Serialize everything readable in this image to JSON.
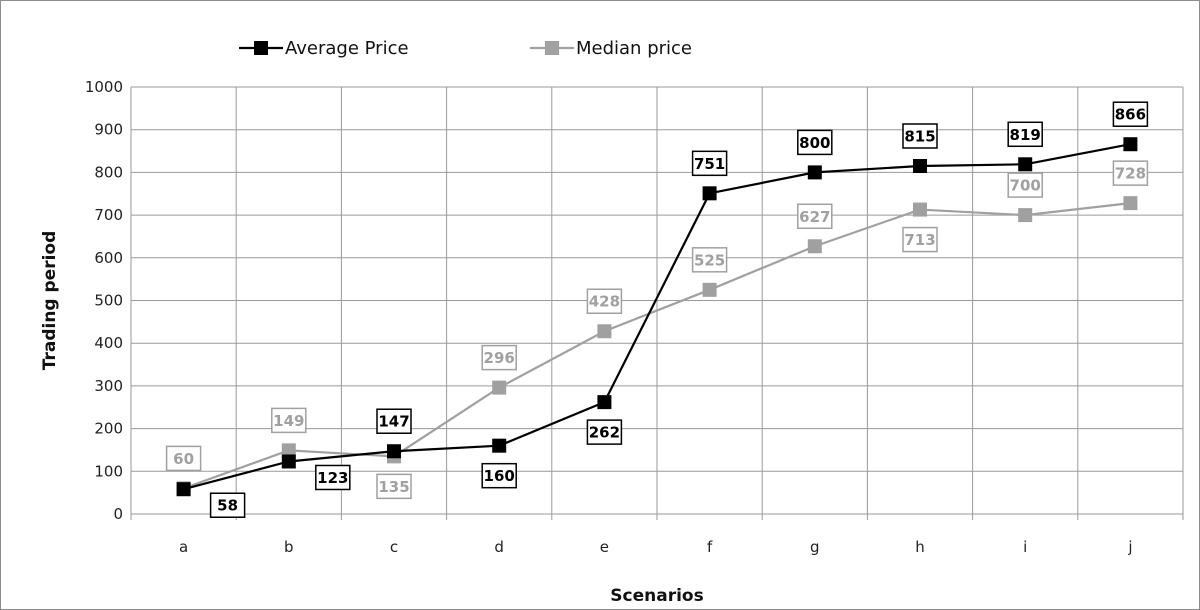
{
  "chart_data": {
    "type": "line",
    "title": "",
    "xlabel": "Scenarios",
    "ylabel": "Trading period",
    "categories": [
      "a",
      "b",
      "c",
      "d",
      "e",
      "f",
      "g",
      "h",
      "i",
      "j"
    ],
    "ylim": [
      0,
      1000
    ],
    "yticks": [
      0,
      100,
      200,
      300,
      400,
      500,
      600,
      700,
      800,
      900,
      1000
    ],
    "grid": true,
    "legend_position": "top",
    "series": [
      {
        "name": "Average Price",
        "values": [
          58,
          123,
          147,
          160,
          262,
          751,
          800,
          815,
          819,
          866
        ],
        "color": "#000000",
        "marker": "square",
        "label_positions": [
          "below-right",
          "below-right",
          "above",
          "below",
          "below",
          "above",
          "above",
          "above",
          "above",
          "above"
        ]
      },
      {
        "name": "Median price",
        "values": [
          60,
          149,
          135,
          296,
          428,
          525,
          627,
          713,
          700,
          728
        ],
        "color": "#a0a0a0",
        "marker": "square",
        "label_positions": [
          "above",
          "above",
          "below",
          "above",
          "above",
          "above",
          "above",
          "below",
          "above",
          "above"
        ]
      }
    ]
  }
}
